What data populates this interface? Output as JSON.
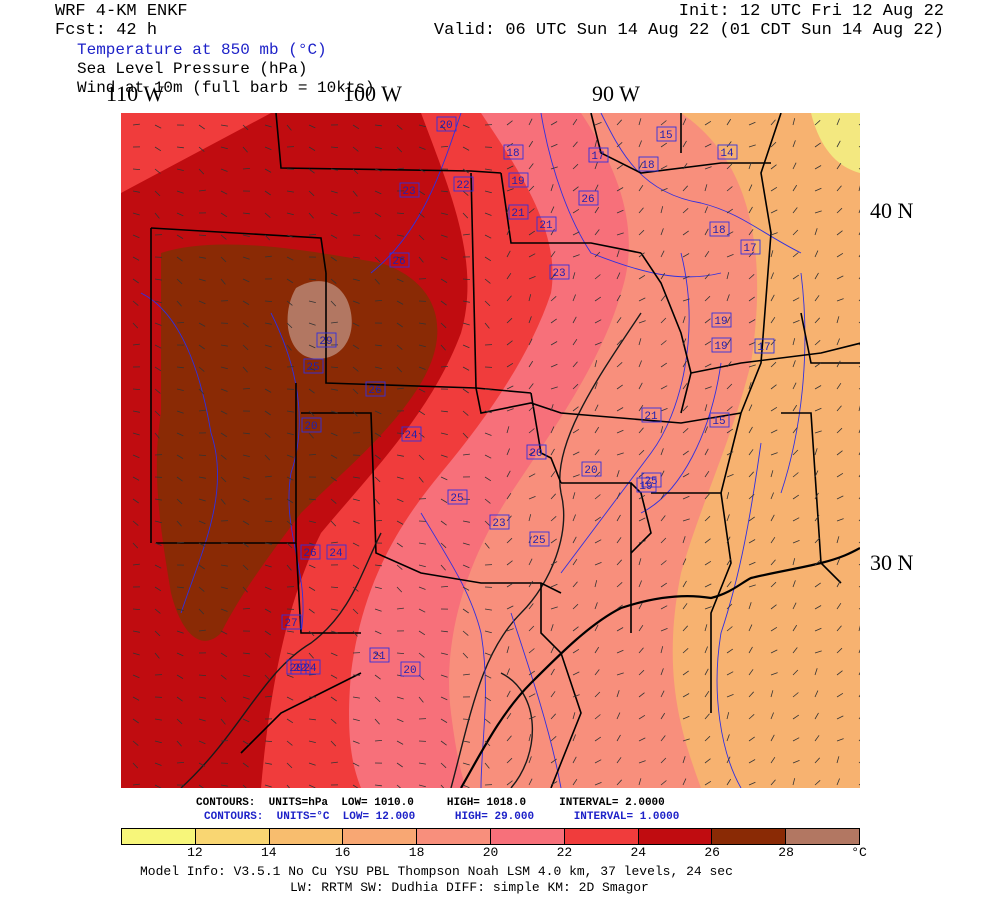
{
  "header": {
    "model": "WRF 4-KM ENKF",
    "fcst": "Fcst:   42 h",
    "init": "Init: 12 UTC Fri 12 Aug 22",
    "valid": "Valid: 06 UTC Sun 14 Aug 22 (01 CDT Sun 14 Aug 22)"
  },
  "fields": {
    "temperature": "Temperature at 850 mb (°C)",
    "slp": "Sea Level Pressure (hPa)",
    "wind": "Wind at 10m (full barb = 10kts)"
  },
  "axes": {
    "lon_labels": [
      "110 W",
      "100 W",
      "90 W"
    ],
    "lat_labels": [
      "40 N",
      "30 N"
    ]
  },
  "contour_info": {
    "slp": {
      "label": "CONTOURS:",
      "units": "UNITS=hPa",
      "low": "LOW=   1010.0",
      "high": "HIGH=   1018.0",
      "interval": "INTERVAL=    2.0000"
    },
    "temp": {
      "label": "CONTOURS:",
      "units": "UNITS=°C",
      "low": "LOW=   12.000",
      "high": "HIGH=   29.000",
      "interval": "INTERVAL=    1.0000"
    }
  },
  "colorbar": {
    "labels": [
      "12",
      "14",
      "16",
      "18",
      "20",
      "22",
      "24",
      "26",
      "28"
    ],
    "unit": "°C",
    "colors": [
      "#f7f67a",
      "#f9d672",
      "#f8bd6e",
      "#f8a773",
      "#f88f7c",
      "#f7707a",
      "#f03c3c",
      "#c00c10",
      "#8a2a05",
      "#b27762"
    ]
  },
  "map": {
    "colors": {
      "bg": "#f7b270",
      "t18": "#f8a773",
      "t20": "#f88f7c",
      "t22": "#f7707a",
      "t24": "#f03c3c",
      "t26": "#c00c10",
      "t28": "#8a2a05",
      "t29": "#b27762",
      "ne_yellow": "#f3e880",
      "contour_blue": "#3030e0",
      "boundary": "#000000"
    },
    "contour_labels": [
      "20",
      "18",
      "17",
      "18",
      "15",
      "14",
      "23",
      "22",
      "19",
      "21",
      "21",
      "26",
      "18",
      "17",
      "26",
      "23",
      "19",
      "19",
      "17",
      "29",
      "25",
      "26",
      "20",
      "27",
      "24",
      "20",
      "21",
      "15",
      "25",
      "20",
      "19",
      "25",
      "25",
      "23",
      "26",
      "24",
      "22",
      "20",
      "24",
      "21",
      "20"
    ]
  },
  "footer": {
    "model_info": "Model Info: V3.5.1    No Cu    YSU PBL   Thompson      Noah LSM  4.0 km,  37 levels,    24 sec",
    "model_info2": "LW: RRTM SW: Dudhia  DIFF: simple KM: 2D Smagor"
  }
}
